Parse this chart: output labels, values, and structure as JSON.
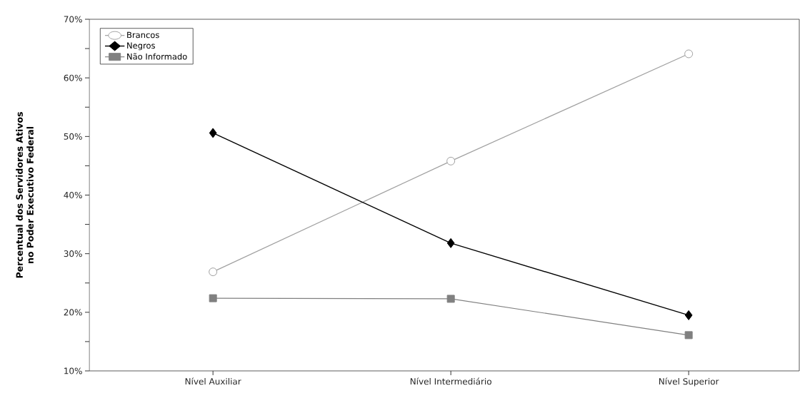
{
  "chart_data": {
    "type": "line",
    "ylabel": "Percentual dos Servidores Ativos\nno Poder Executivo Federal",
    "categories": [
      "Nível Auxiliar",
      "Nível Intermediário",
      "Nível Superior"
    ],
    "series": [
      {
        "name": "Brancos",
        "color": "#a0a0a0",
        "marker": "circle",
        "values": [
          26.9,
          45.8,
          64.1
        ]
      },
      {
        "name": "Negros",
        "color": "#000000",
        "marker": "diamond",
        "values": [
          50.6,
          31.8,
          19.5
        ]
      },
      {
        "name": "Não Informado",
        "color": "#808080",
        "marker": "square",
        "values": [
          22.4,
          22.3,
          16.1
        ]
      }
    ],
    "ylim": [
      10,
      70
    ],
    "yticks": [
      {
        "value": 10,
        "label": "10%"
      },
      {
        "value": 15,
        "label": null
      },
      {
        "value": 20,
        "label": "20%"
      },
      {
        "value": 25,
        "label": null
      },
      {
        "value": 30,
        "label": "30%"
      },
      {
        "value": 35,
        "label": null
      },
      {
        "value": 40,
        "label": "40%"
      },
      {
        "value": 45,
        "label": null
      },
      {
        "value": 50,
        "label": "50%"
      },
      {
        "value": 55,
        "label": null
      },
      {
        "value": 60,
        "label": "60%"
      },
      {
        "value": 65,
        "label": null
      },
      {
        "value": 70,
        "label": "70%"
      }
    ],
    "legend": "top left",
    "grid": false,
    "line_style": "solid"
  }
}
